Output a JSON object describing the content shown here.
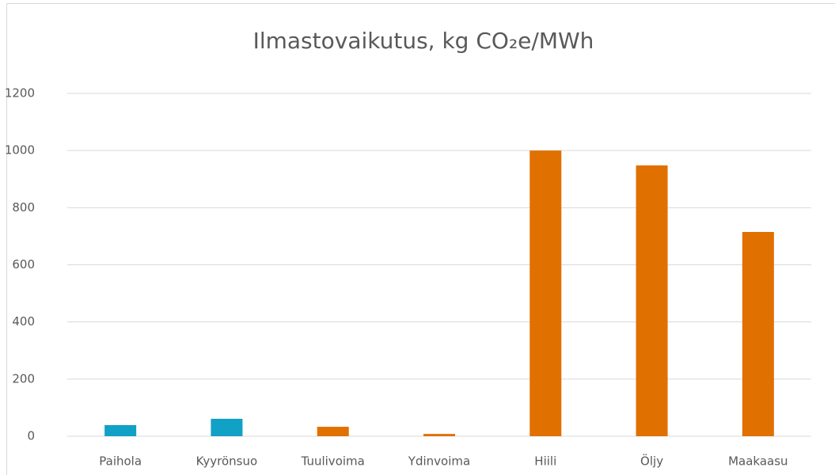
{
  "chart_data": {
    "type": "bar",
    "title": "Ilmastovaikutus, kg CO₂e/MWh",
    "categories": [
      "Paihola",
      "Kyyrönsuo",
      "Tuulivoima",
      "Ydinvoima",
      "Hiili",
      "Öljy",
      "Maakaasu"
    ],
    "values": [
      39,
      61,
      33,
      8,
      1000,
      948,
      715
    ],
    "colors": [
      "#11a0c6",
      "#11a0c6",
      "#e07000",
      "#e07000",
      "#e07000",
      "#e07000",
      "#e07000"
    ],
    "ylim": [
      0,
      1200
    ],
    "yticks": [
      0,
      200,
      400,
      600,
      800,
      1000,
      1200
    ],
    "grid": true
  }
}
